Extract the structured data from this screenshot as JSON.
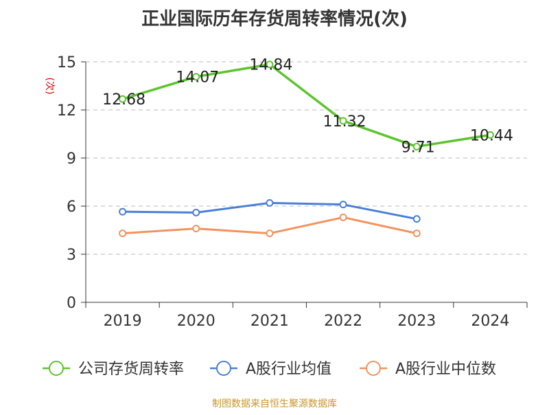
{
  "chart_data": {
    "type": "line",
    "title": "正业国际历年存货周转率情况(次)",
    "ylabel": "(次)",
    "categories": [
      "2019",
      "2020",
      "2021",
      "2022",
      "2023",
      "2024"
    ],
    "ylim": [
      0,
      15
    ],
    "yticks": [
      0,
      3,
      6,
      9,
      12,
      15
    ],
    "grid": true,
    "legend_position": "bottom",
    "series": [
      {
        "name": "公司存货周转率",
        "color": "#5cc52e",
        "values": [
          12.68,
          14.07,
          14.84,
          11.32,
          9.71,
          10.44
        ],
        "labels": [
          "12.68",
          "14.07",
          "14.84",
          "11.32",
          "9.71",
          "10.44"
        ]
      },
      {
        "name": "A股行业均值",
        "color": "#4a7fd6",
        "values": [
          5.65,
          5.6,
          6.2,
          6.1,
          5.2,
          null
        ]
      },
      {
        "name": "A股行业中位数",
        "color": "#f4925e",
        "values": [
          4.3,
          4.6,
          4.3,
          5.3,
          4.3,
          null
        ]
      }
    ],
    "source": "制图数据来自恒生聚源数据库"
  }
}
